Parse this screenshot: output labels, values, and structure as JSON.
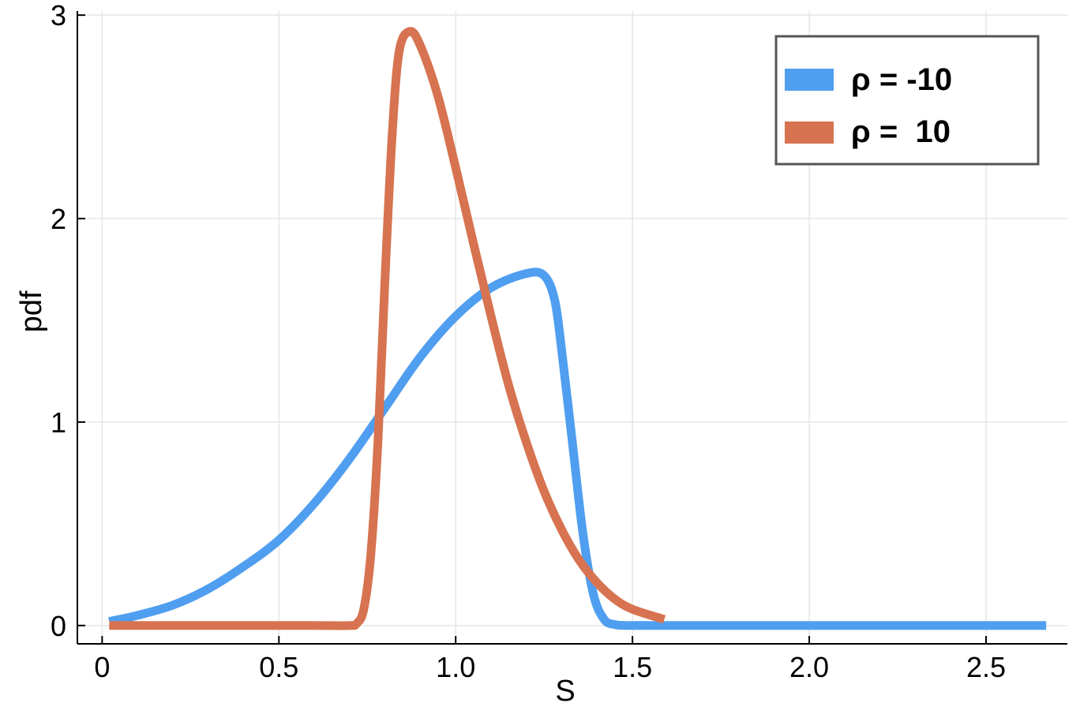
{
  "chart_data": {
    "type": "line",
    "title": "",
    "xlabel": "S",
    "ylabel": "pdf",
    "xlim": [
      -0.07,
      2.73
    ],
    "ylim": [
      -0.09,
      3.02
    ],
    "xticks": [
      0,
      0.5,
      1.0,
      1.5,
      2.0,
      2.5
    ],
    "xtick_labels": [
      "0",
      "0.5",
      "1.0",
      "1.5",
      "2.0",
      "2.5"
    ],
    "yticks": [
      0,
      1,
      2,
      3
    ],
    "ytick_labels": [
      "0",
      "1",
      "2",
      "3"
    ],
    "grid": true,
    "legend_position": "top-right",
    "series": [
      {
        "name": "ρ = -10",
        "color": "#4f9ef0",
        "x": [
          0.02,
          0.1,
          0.2,
          0.3,
          0.4,
          0.5,
          0.6,
          0.7,
          0.8,
          0.9,
          1.0,
          1.1,
          1.2,
          1.25,
          1.28,
          1.3,
          1.33,
          1.36,
          1.39,
          1.42,
          1.45,
          1.5,
          1.7,
          2.0,
          2.3,
          2.67
        ],
        "y": [
          0.02,
          0.05,
          0.1,
          0.18,
          0.29,
          0.42,
          0.6,
          0.82,
          1.07,
          1.32,
          1.52,
          1.66,
          1.73,
          1.72,
          1.6,
          1.35,
          0.9,
          0.45,
          0.15,
          0.03,
          0.005,
          0.0,
          0.0,
          0.0,
          0.0,
          0.0
        ]
      },
      {
        "name": "ρ =  10",
        "color": "#d77350",
        "x": [
          0.02,
          0.2,
          0.4,
          0.6,
          0.7,
          0.72,
          0.74,
          0.76,
          0.78,
          0.8,
          0.82,
          0.84,
          0.87,
          0.9,
          0.95,
          1.0,
          1.05,
          1.1,
          1.15,
          1.2,
          1.25,
          1.3,
          1.35,
          1.4,
          1.45,
          1.5,
          1.59
        ],
        "y": [
          0.0,
          0.0,
          0.0,
          0.0,
          0.0,
          0.01,
          0.08,
          0.35,
          0.9,
          1.7,
          2.4,
          2.82,
          2.92,
          2.85,
          2.6,
          2.25,
          1.88,
          1.52,
          1.18,
          0.9,
          0.66,
          0.47,
          0.32,
          0.21,
          0.13,
          0.08,
          0.03
        ]
      }
    ],
    "legend_labels": [
      "ρ = -10",
      "ρ =  10"
    ],
    "axis_color": "#000000",
    "grid_color": "#e6e6e6",
    "legend_border_color": "#555555"
  }
}
